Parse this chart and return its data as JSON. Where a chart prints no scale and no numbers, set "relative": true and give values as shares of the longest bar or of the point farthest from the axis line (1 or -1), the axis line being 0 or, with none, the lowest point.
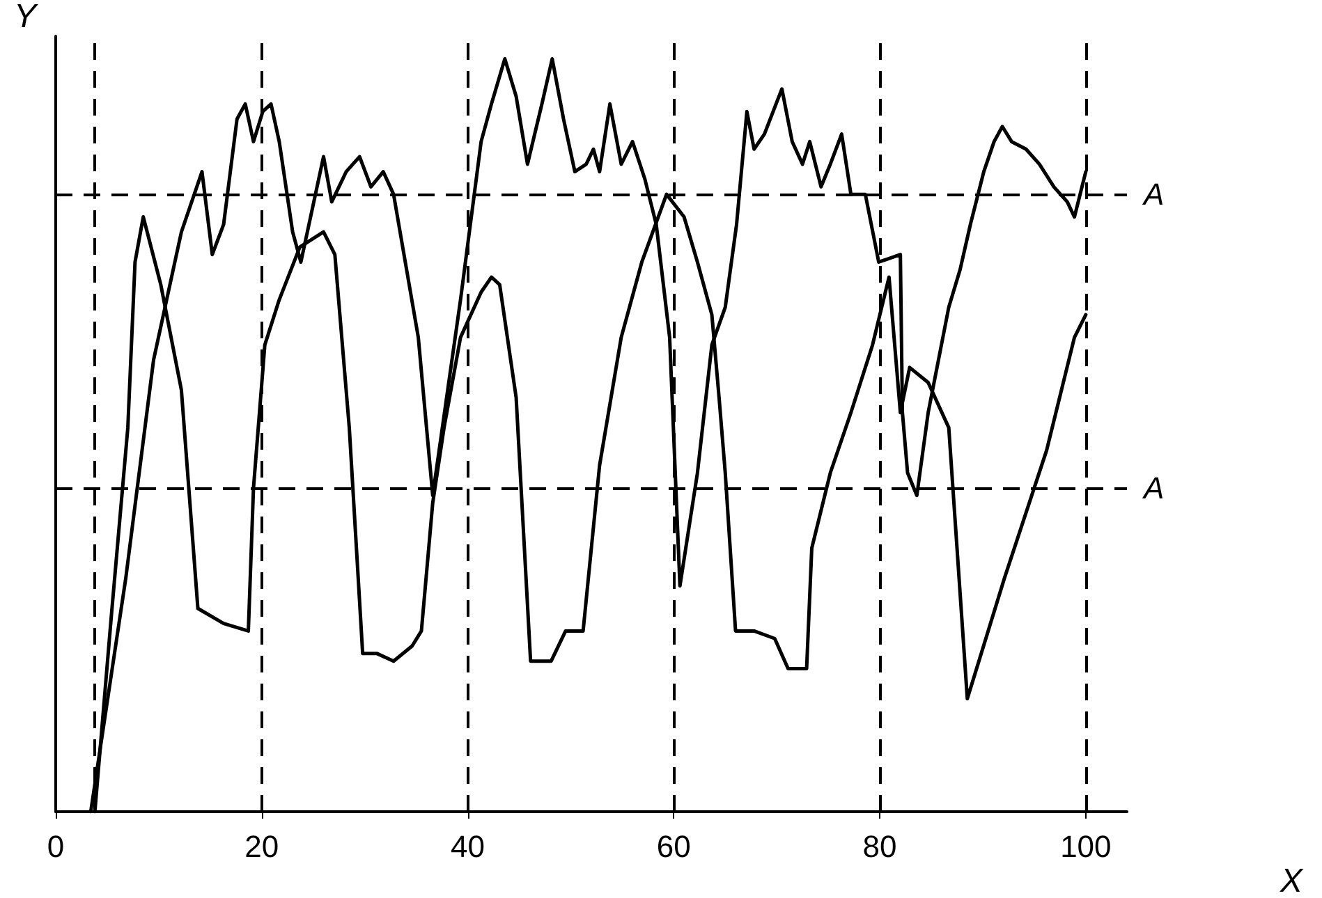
{
  "chart_data": {
    "type": "line",
    "relative": true,
    "xlabel": "X",
    "ylabel": "Y",
    "xlim": [
      0,
      104
    ],
    "xticks": [
      0,
      20,
      40,
      60,
      80,
      100
    ],
    "grid": false,
    "marker": "none",
    "line_style": "solid",
    "series": [
      {
        "color": "#000000",
        "x": [
          3.4,
          6.8,
          9.5,
          12.2,
          14.2,
          15.2,
          16.3,
          17.6,
          18.4,
          19.2,
          20.1,
          20.9,
          21.7,
          23.0,
          23.8,
          26.0,
          26.8,
          28.2,
          29.5,
          30.6,
          31.8,
          32.8,
          35.2,
          36.6,
          39.3,
          41.3,
          42.3,
          43.6,
          44.7,
          45.8,
          47.2,
          48.2,
          49.3,
          50.4,
          51.5,
          52.2,
          52.8,
          53.8,
          54.9,
          56.0,
          57.2,
          58.3,
          59.6,
          60.6,
          62.3,
          63.7,
          65.0,
          66.1,
          67.1,
          67.8,
          68.8,
          70.5,
          71.5,
          72.5,
          73.2,
          74.3,
          75.2,
          76.3,
          77.2,
          78.6,
          79.9,
          82.0,
          82.2,
          82.7,
          83.6,
          84.7,
          86.7,
          87.8,
          88.8,
          90.1,
          91.1,
          91.9,
          92.8,
          94.2,
          95.5,
          96.9,
          98.2,
          98.9,
          100
        ],
        "values": [
          0,
          0.31,
          0.6,
          0.77,
          0.85,
          0.74,
          0.78,
          0.92,
          0.94,
          0.89,
          0.93,
          0.94,
          0.89,
          0.77,
          0.73,
          0.87,
          0.81,
          0.85,
          0.87,
          0.83,
          0.85,
          0.82,
          0.63,
          0.42,
          0.68,
          0.89,
          0.94,
          1.0,
          0.95,
          0.86,
          0.94,
          1.0,
          0.92,
          0.85,
          0.86,
          0.88,
          0.85,
          0.94,
          0.86,
          0.89,
          0.84,
          0.78,
          0.63,
          0.3,
          0.45,
          0.62,
          0.67,
          0.78,
          0.93,
          0.88,
          0.9,
          0.96,
          0.89,
          0.86,
          0.89,
          0.83,
          0.86,
          0.9,
          0.82,
          0.82,
          0.73,
          0.74,
          0.53,
          0.45,
          0.42,
          0.53,
          0.67,
          0.72,
          0.78,
          0.85,
          0.89,
          0.91,
          0.89,
          0.88,
          0.86,
          0.83,
          0.81,
          0.79,
          0.85
        ]
      },
      {
        "color": "#000000",
        "x": [
          3.8,
          5.4,
          7.0,
          7.7,
          8.5,
          10.2,
          12.2,
          13.8,
          16.3,
          18.7,
          19.2,
          20.3,
          21.7,
          23.7,
          26.0,
          27.1,
          28.5,
          29.8,
          31.2,
          32.8,
          34.6,
          35.5,
          36.6,
          37.7,
          39.3,
          41.3,
          42.3,
          43.1,
          44.7,
          46.1,
          48.1,
          49.5,
          51.2,
          52.8,
          54.9,
          56.9,
          59.3,
          61.0,
          62.3,
          63.7,
          64.4,
          65.0,
          66.0,
          67.8,
          69.8,
          71.1,
          72.9,
          73.4,
          75.2,
          77.2,
          79.3,
          80.9,
          82.0,
          82.9,
          84.7,
          86.7,
          88.5,
          92.1,
          96.2,
          98.9,
          100
        ],
        "values": [
          0,
          0.26,
          0.51,
          0.73,
          0.79,
          0.7,
          0.56,
          0.27,
          0.25,
          0.24,
          0.43,
          0.62,
          0.68,
          0.75,
          0.77,
          0.74,
          0.51,
          0.21,
          0.21,
          0.2,
          0.22,
          0.24,
          0.41,
          0.51,
          0.63,
          0.69,
          0.71,
          0.7,
          0.55,
          0.2,
          0.2,
          0.24,
          0.24,
          0.46,
          0.63,
          0.73,
          0.82,
          0.79,
          0.73,
          0.66,
          0.55,
          0.45,
          0.24,
          0.24,
          0.23,
          0.19,
          0.19,
          0.35,
          0.45,
          0.53,
          0.62,
          0.71,
          0.53,
          0.59,
          0.57,
          0.51,
          0.15,
          0.31,
          0.48,
          0.63,
          0.66
        ]
      }
    ],
    "ref_lines": [
      {
        "axis": "y",
        "value": 0.82,
        "label": "A",
        "line_style": "dashed",
        "color": "#000000"
      },
      {
        "axis": "y",
        "value": 0.43,
        "label": "A",
        "line_style": "dashed",
        "color": "#000000"
      },
      {
        "axis": "x",
        "value": 3.7,
        "label": null,
        "line_style": "dashed",
        "color": "#000000"
      },
      {
        "axis": "x",
        "value": 20,
        "label": null,
        "line_style": "dashed",
        "color": "#000000"
      },
      {
        "axis": "x",
        "value": 40,
        "label": null,
        "line_style": "dashed",
        "color": "#000000"
      },
      {
        "axis": "x",
        "value": 60,
        "label": null,
        "line_style": "dashed",
        "color": "#000000"
      },
      {
        "axis": "x",
        "value": 80,
        "label": null,
        "line_style": "dashed",
        "color": "#000000"
      },
      {
        "axis": "x",
        "value": 100,
        "label": null,
        "line_style": "dashed",
        "color": "#000000"
      }
    ]
  }
}
